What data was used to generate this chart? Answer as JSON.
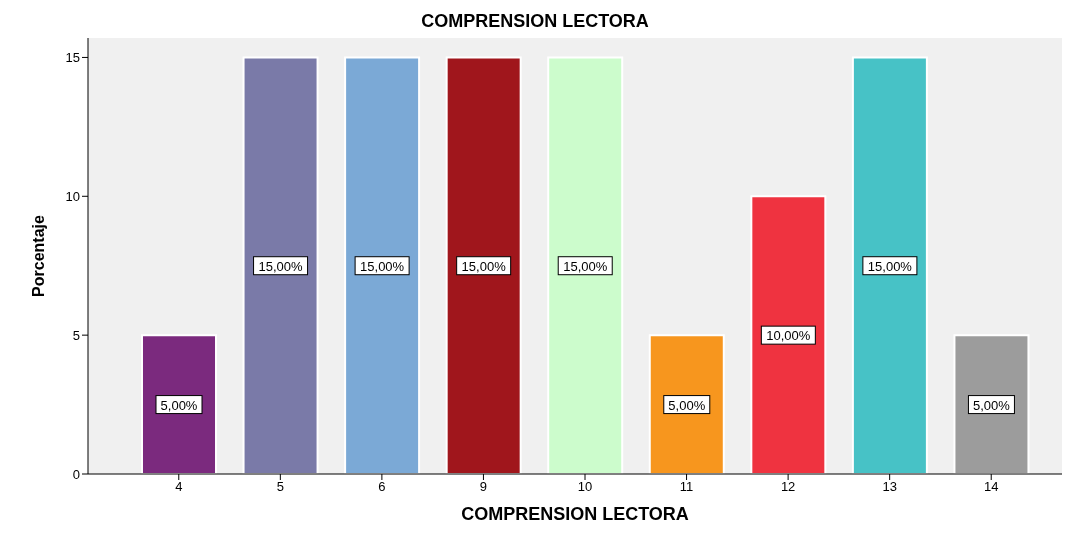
{
  "chart_data": {
    "type": "bar",
    "title": "COMPRENSION LECTORA",
    "xlabel": "COMPRENSION LECTORA",
    "ylabel": "Porcentaje",
    "categories": [
      "4",
      "5",
      "6",
      "9",
      "10",
      "11",
      "12",
      "13",
      "14"
    ],
    "values": [
      5,
      15,
      15,
      15,
      15,
      5,
      10,
      15,
      5
    ],
    "colors": [
      "#7b2a7e",
      "#7a7aa8",
      "#7ba9d6",
      "#a0161c",
      "#ccfccc",
      "#f7961e",
      "#ef3340",
      "#47c2c6",
      "#9c9c9c"
    ],
    "value_labels": [
      "5,00%",
      "15,00%",
      "15,00%",
      "15,00%",
      "15,00%",
      "5,00%",
      "10,00%",
      "15,00%",
      "5,00%"
    ],
    "ylim": [
      0,
      15.7
    ],
    "yticks": [
      0,
      5,
      10,
      15
    ],
    "grid": false
  }
}
